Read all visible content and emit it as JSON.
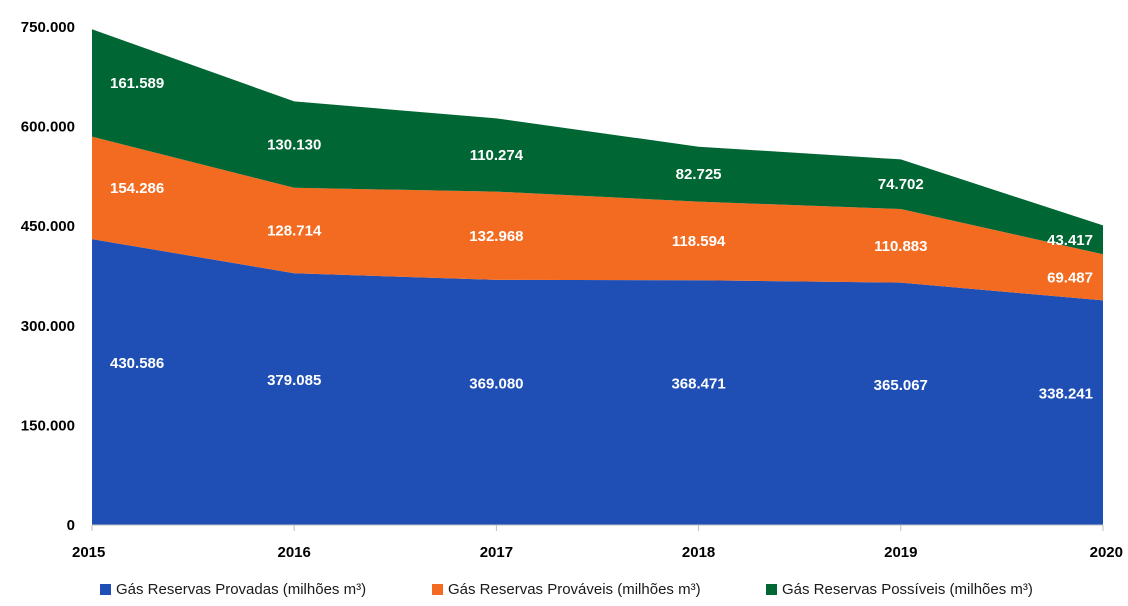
{
  "chart_data": {
    "type": "area",
    "stacked": true,
    "x": [
      "2015",
      "2016",
      "2017",
      "2018",
      "2019",
      "2020"
    ],
    "ylim": [
      0,
      750000
    ],
    "yticks": [
      0,
      150000,
      300000,
      450000,
      600000,
      750000
    ],
    "ytick_labels": [
      "0",
      "150.000",
      "300.000",
      "450.000",
      "600.000",
      "750.000"
    ],
    "grid": false,
    "legend_position": "bottom",
    "series": [
      {
        "name": "Gás Reservas Provadas (milhões m³)",
        "color": "#1f4fb5",
        "values": [
          430586,
          379085,
          369080,
          368471,
          365067,
          338241
        ],
        "labels": [
          "430.586",
          "379.085",
          "369.080",
          "368.471",
          "365.067",
          "338.241"
        ]
      },
      {
        "name": "Gás Reservas Prováveis (milhões m³)",
        "color": "#f26b21",
        "values": [
          154286,
          128714,
          132968,
          118594,
          110883,
          69487
        ],
        "labels": [
          "154.286",
          "128.714",
          "132.968",
          "118.594",
          "110.883",
          "69.487"
        ]
      },
      {
        "name": "Gás Reservas Possíveis (milhões m³)",
        "color": "#006633",
        "values": [
          161589,
          130130,
          110274,
          82725,
          74702,
          43417
        ],
        "labels": [
          "161.589",
          "130.130",
          "110.274",
          "82.725",
          "74.702",
          "43.417"
        ]
      }
    ]
  }
}
